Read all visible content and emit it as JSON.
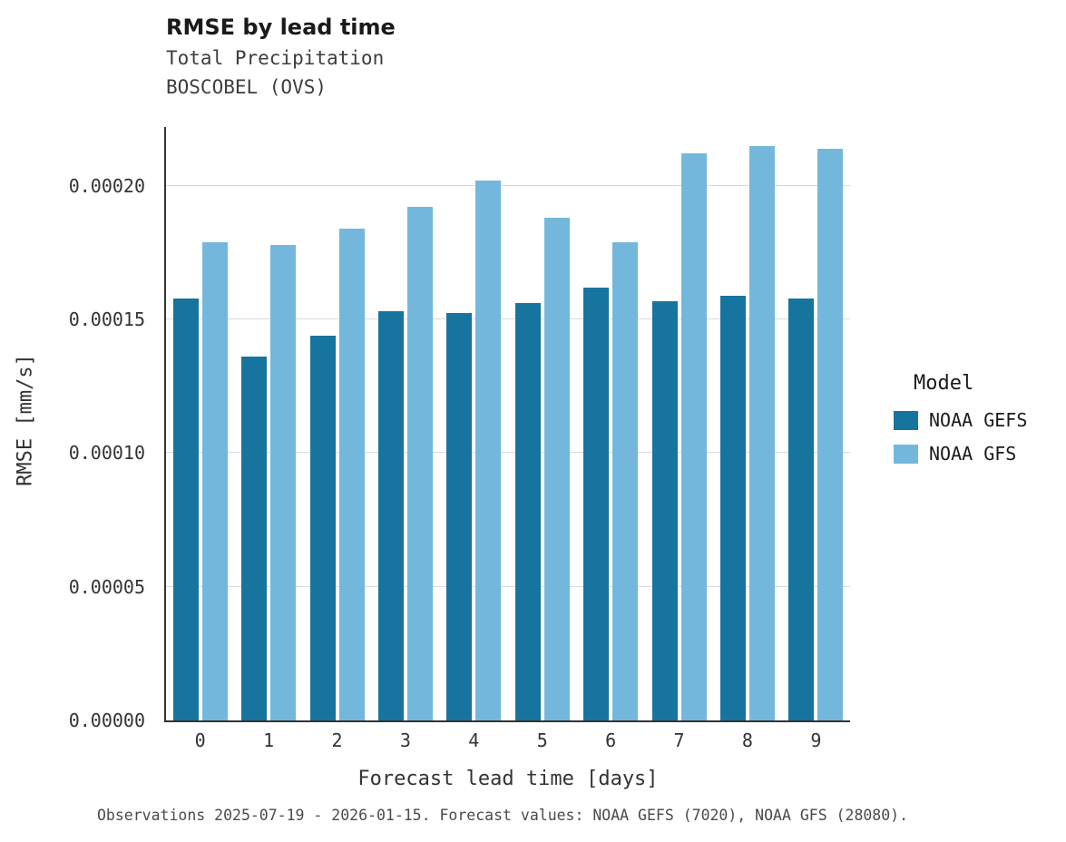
{
  "header": {
    "title": "RMSE by lead time",
    "subtitle1": "Total Precipitation",
    "subtitle2": "BOSCOBEL (OVS)"
  },
  "caption": "Observations 2025-07-19 - 2026-01-15. Forecast values: NOAA GEFS (7020), NOAA GFS (28080).",
  "legend": {
    "title": "Model",
    "entries": [
      {
        "label": "NOAA GEFS",
        "color": "#17749e"
      },
      {
        "label": "NOAA GFS",
        "color": "#74b7dd"
      }
    ]
  },
  "chart_data": {
    "type": "bar",
    "title": "RMSE by lead time",
    "subtitle": "Total Precipitation — BOSCOBEL (OVS)",
    "xlabel": "Forecast lead time [days]",
    "ylabel": "RMSE [mm/s]",
    "categories": [
      "0",
      "1",
      "2",
      "3",
      "4",
      "5",
      "6",
      "7",
      "8",
      "9"
    ],
    "series": [
      {
        "name": "NOAA GEFS",
        "color": "#17749e",
        "values": [
          0.000158,
          0.000136,
          0.000144,
          0.000153,
          0.0001525,
          0.000156,
          0.000162,
          0.000157,
          0.000159,
          0.000158
        ]
      },
      {
        "name": "NOAA GFS",
        "color": "#74b7dd",
        "values": [
          0.000179,
          0.000178,
          0.000184,
          0.000192,
          0.000202,
          0.000188,
          0.000179,
          0.000212,
          0.000215,
          0.000214
        ]
      }
    ],
    "ylim": [
      0,
      0.000222
    ],
    "yticks": [
      0,
      5e-05,
      0.0001,
      0.00015,
      0.0002
    ],
    "ytick_labels": [
      "0.00000",
      "0.00005",
      "0.00010",
      "0.00015",
      "0.00020"
    ],
    "grid": true,
    "legend_position": "right",
    "legend_title": "Model"
  }
}
